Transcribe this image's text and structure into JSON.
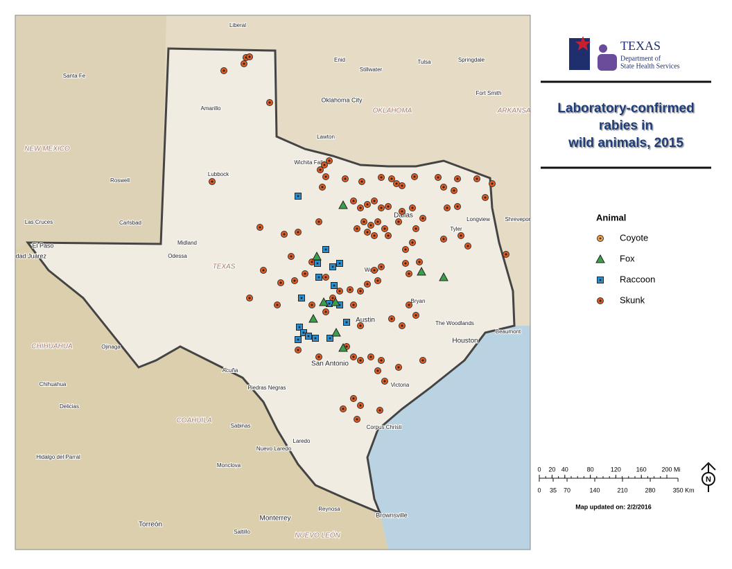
{
  "logo": {
    "name": "TEXAS",
    "line1": "Department of",
    "line2": "State Health Services"
  },
  "title": [
    "Laboratory-confirmed",
    "rabies in",
    "wild animals, 2015"
  ],
  "legend": {
    "title": "Animal",
    "items": [
      "Coyote",
      "Fox",
      "Raccoon",
      "Skunk"
    ]
  },
  "scale": {
    "miles": {
      "ticks": [
        0,
        20,
        40,
        80,
        120,
        160,
        200
      ],
      "unit": "Mi"
    },
    "km": {
      "ticks": [
        0,
        35,
        70,
        140,
        210,
        280,
        350
      ],
      "unit": "Km"
    }
  },
  "north": "N",
  "updated": "Map updated on: 2/2/2016",
  "map_labels": [
    "Liberal",
    "Enid",
    "Tulsa",
    "Springdale",
    "Stillwater",
    "Oklahoma City",
    "OKLAHOMA",
    "Fort Smith",
    "Lawton",
    "ARKANSAS",
    "Santa Fe",
    "Amarillo",
    "NEW MEXICO",
    "Roswell",
    "Lubbock",
    "Wichita Falls",
    "Dallas",
    "Las Cruces",
    "Carlsbad",
    "El Paso",
    "Ciudad Juárez",
    "Midland",
    "Odessa",
    "TEXAS",
    "Tyler",
    "Longview",
    "Shreveport",
    "Waco",
    "Bryan",
    "Austin",
    "The Woodlands",
    "Houston",
    "Beaumont",
    "San Antonio",
    "Victoria",
    "Acuña",
    "Piedras Negras",
    "CHIHUAHUA",
    "Chihuahua",
    "Delicias",
    "COAHUILA",
    "Sabinas",
    "Laredo",
    "Nuevo Laredo",
    "Corpus Christi",
    "Hidalgo del Parral",
    "Monclova",
    "Monterrey",
    "Reynosa",
    "Brownsville",
    "Torreón",
    "Saltillo",
    "NUEVO LEÓN",
    "Ojinaga"
  ]
}
